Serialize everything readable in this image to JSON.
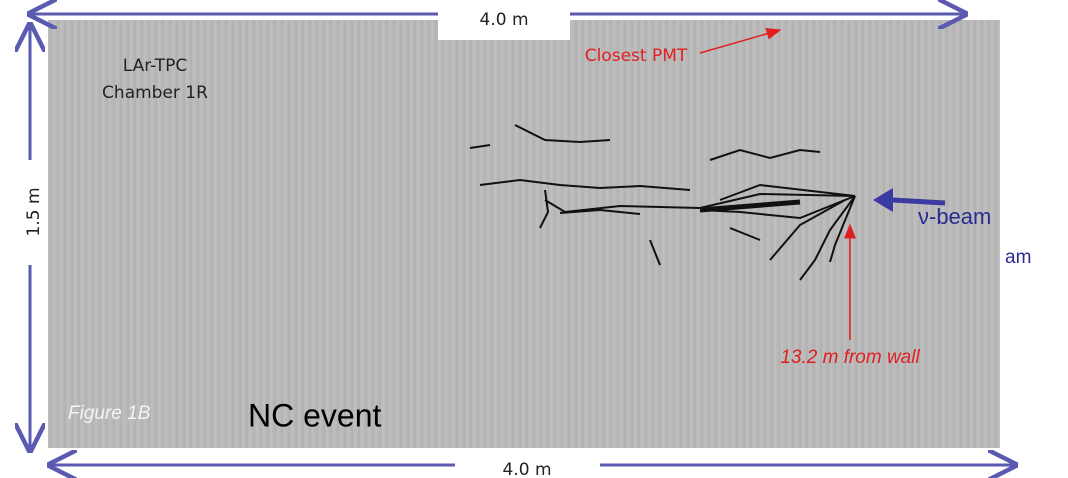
{
  "figure": {
    "top_dimension": "4.0 m",
    "bottom_dimension": "4.0 m",
    "height_dimension": "1.5 m",
    "chamber": [
      "LAr-TPC",
      "Chamber 1R"
    ],
    "closest_pmt": "Closest PMT",
    "beam": "ν-beam",
    "beam_fragment": "am",
    "distance": "13.2 m from wall",
    "figure_label": "Figure 1B",
    "event": "NC event"
  }
}
